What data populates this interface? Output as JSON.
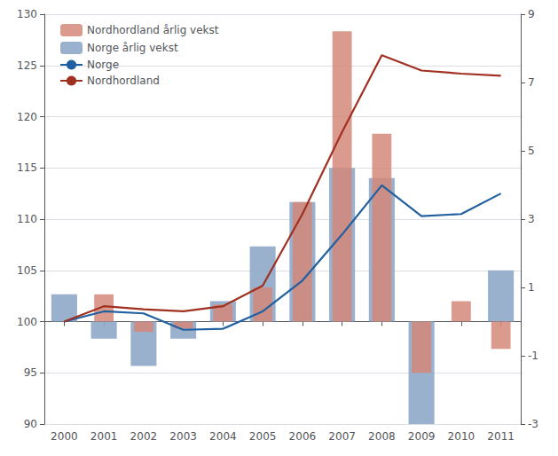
{
  "chart_data": {
    "type": "bar",
    "categories": [
      "2000",
      "2001",
      "2002",
      "2003",
      "2004",
      "2005",
      "2006",
      "2007",
      "2008",
      "2009",
      "2010",
      "2011"
    ],
    "series": [
      {
        "name": "Nordhordland årlig vekst",
        "type": "bar",
        "axis": "y2",
        "color": "#d4887a",
        "values": [
          0.0,
          0.8,
          -0.3,
          -0.2,
          0.5,
          1.0,
          3.5,
          8.5,
          5.5,
          -1.5,
          0.6,
          -0.8
        ]
      },
      {
        "name": "Norge årlig vekst",
        "type": "bar",
        "axis": "y2",
        "color": "#8fa8c8",
        "values": [
          0.8,
          -0.5,
          -1.3,
          -0.5,
          0.6,
          2.2,
          3.5,
          4.5,
          4.2,
          -3.0,
          0.0,
          1.5
        ]
      },
      {
        "name": "Norge",
        "type": "line",
        "color": "#2060a0",
        "values": [
          100.0,
          101.0,
          100.8,
          99.2,
          99.3,
          101.0,
          104.0,
          108.5,
          113.3,
          110.3,
          110.5,
          112.5
        ]
      },
      {
        "name": "Nordhordland",
        "type": "line",
        "color": "#a03020",
        "values": [
          100.0,
          101.5,
          101.2,
          101.0,
          101.5,
          103.5,
          110.5,
          118.5,
          126.0,
          124.5,
          124.2,
          124.0
        ]
      }
    ],
    "ylim": [
      90,
      130
    ],
    "yticks": [
      90,
      95,
      100,
      105,
      110,
      115,
      120,
      125,
      130
    ],
    "y2lim": [
      -3,
      9
    ],
    "y2ticks": [
      -3,
      -1,
      1,
      3,
      5,
      7,
      9
    ],
    "grid": true,
    "legend": "upper left"
  }
}
